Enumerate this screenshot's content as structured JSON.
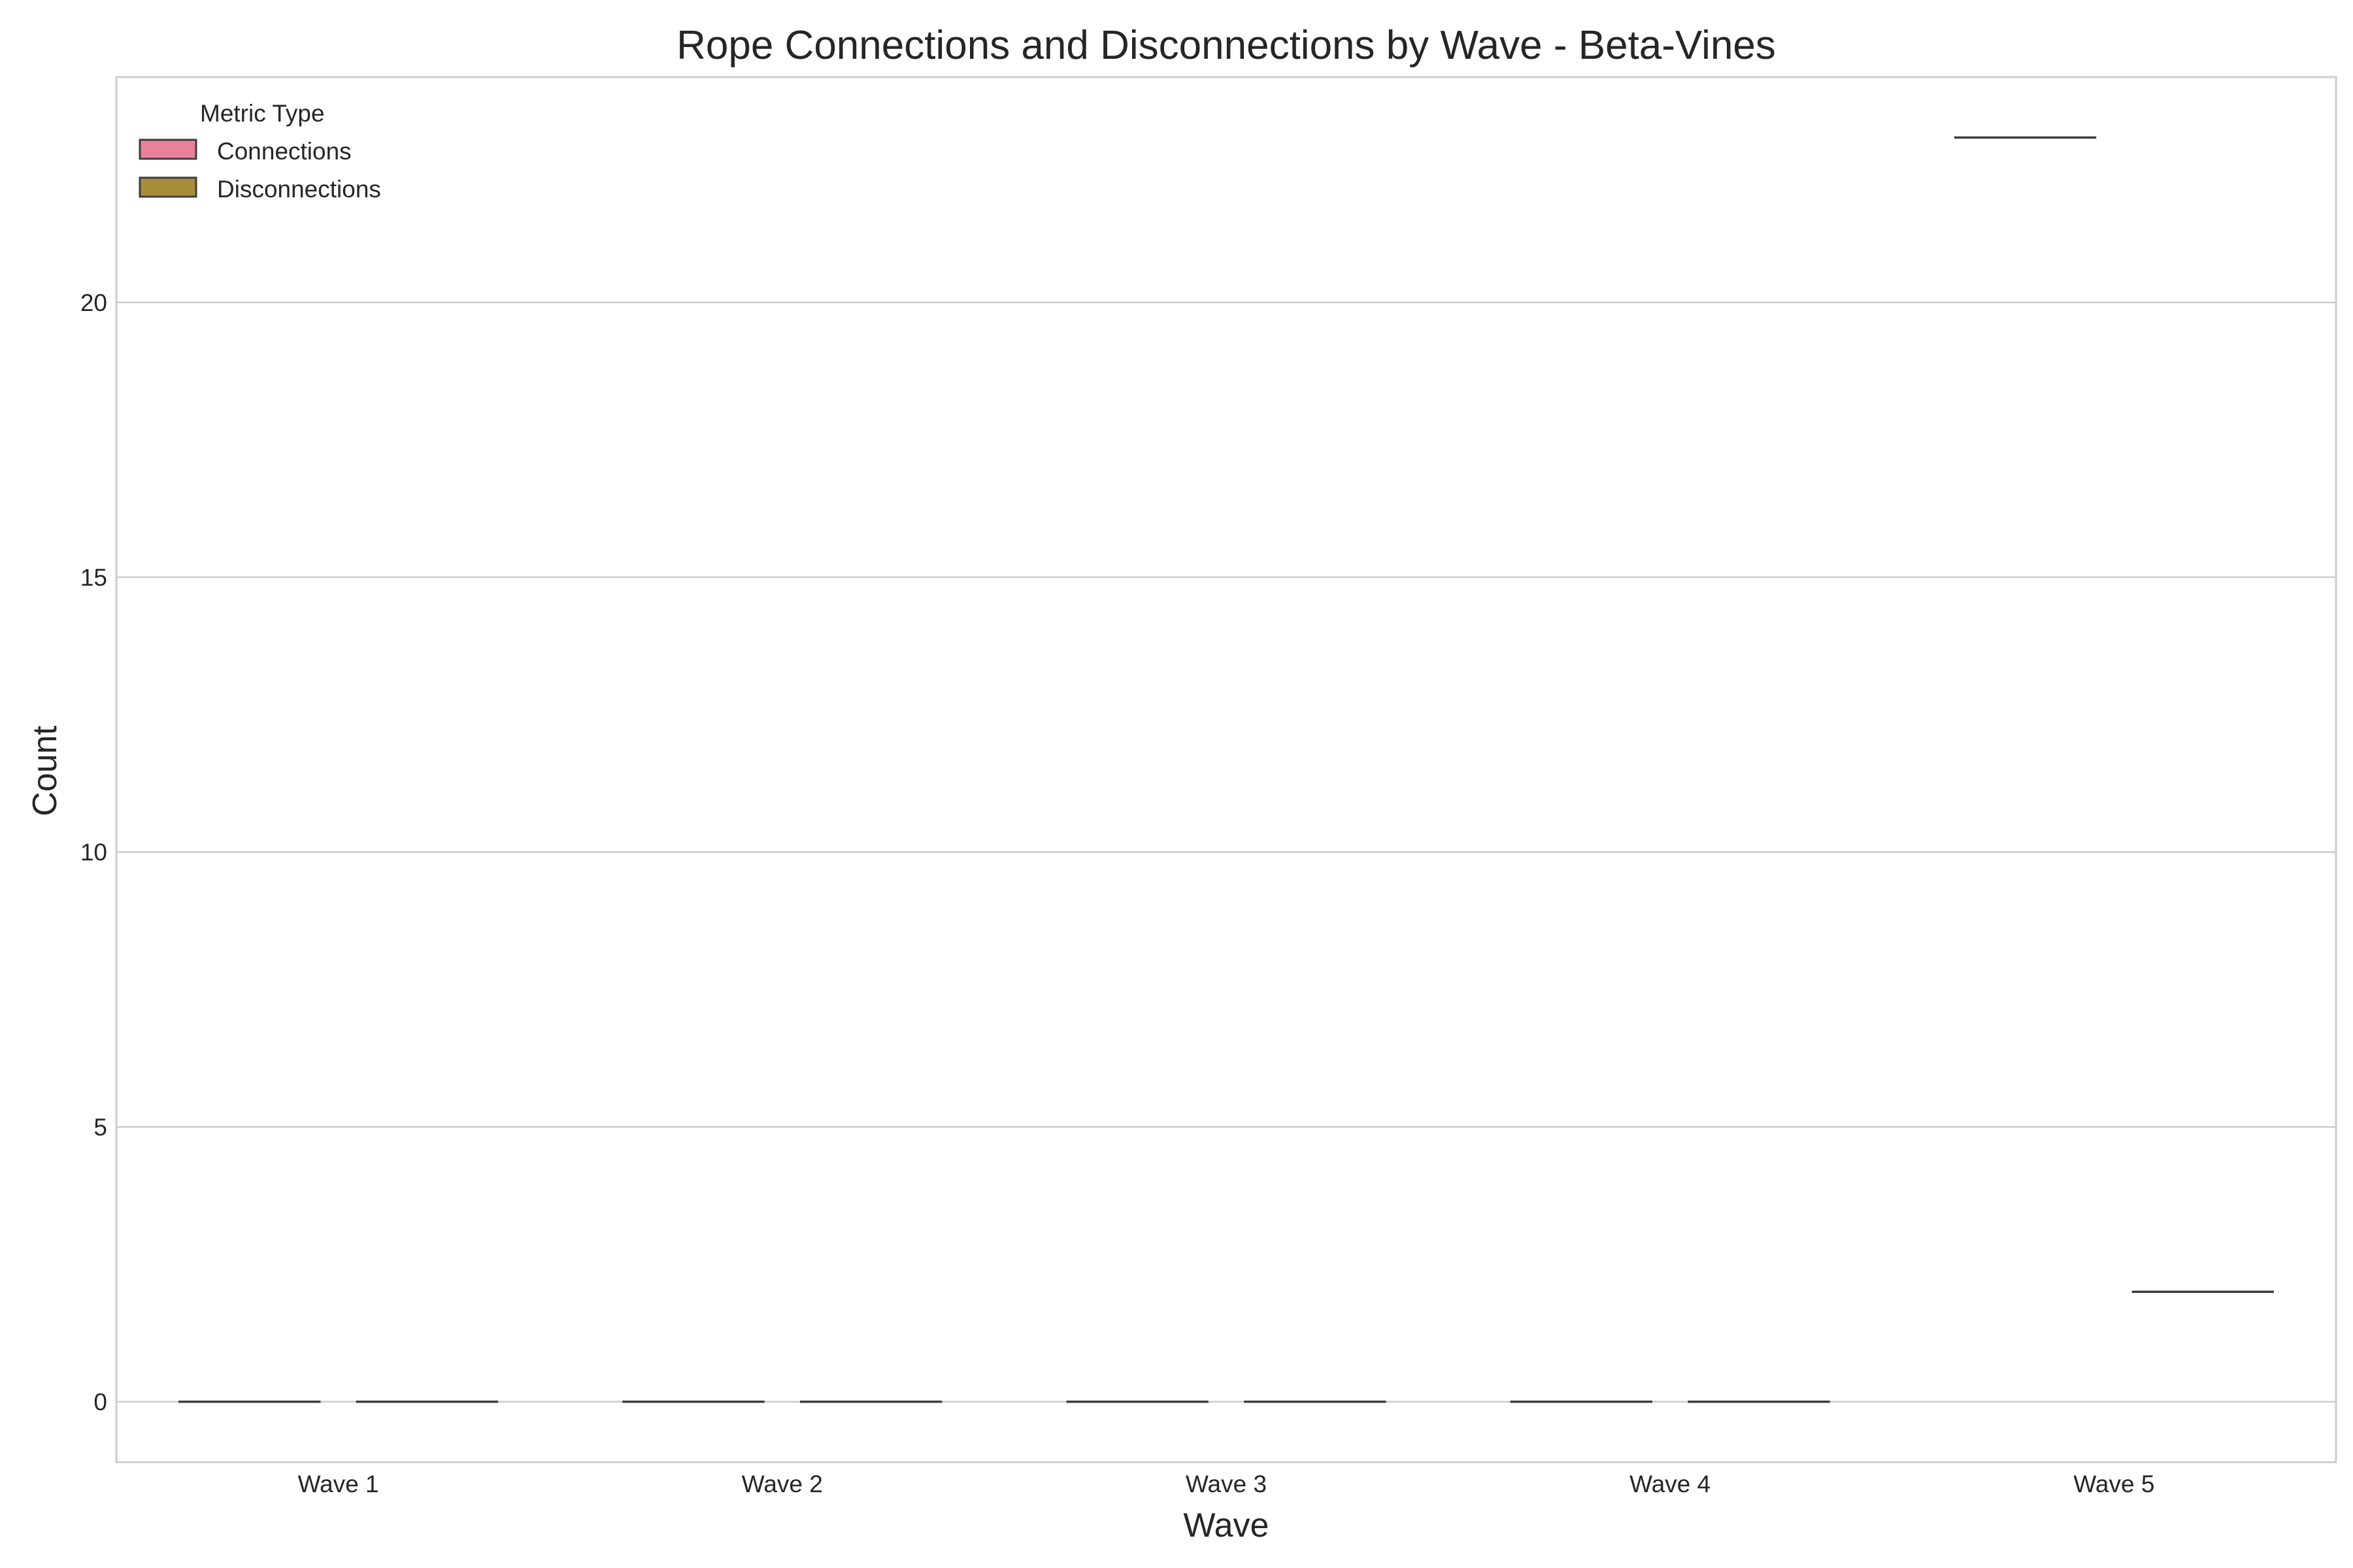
{
  "chart_data": {
    "type": "box",
    "title": "Rope Connections and Disconnections by Wave - Beta-Vines",
    "xlabel": "Wave",
    "ylabel": "Count",
    "categories": [
      "Wave 1",
      "Wave 2",
      "Wave 3",
      "Wave 4",
      "Wave 5"
    ],
    "yticks": [
      0,
      5,
      10,
      15,
      20
    ],
    "ylim": [
      -1.1,
      24.1
    ],
    "grid": "horizontal",
    "legend": {
      "title": "Metric Type",
      "placement": "top-left",
      "entries": [
        "Connections",
        "Disconnections"
      ]
    },
    "series": [
      {
        "name": "Connections",
        "color": "#e8829a",
        "values": [
          0,
          0,
          0,
          0,
          23
        ]
      },
      {
        "name": "Disconnections",
        "color": "#a88d3b",
        "values": [
          0,
          0,
          0,
          0,
          2
        ]
      }
    ]
  }
}
